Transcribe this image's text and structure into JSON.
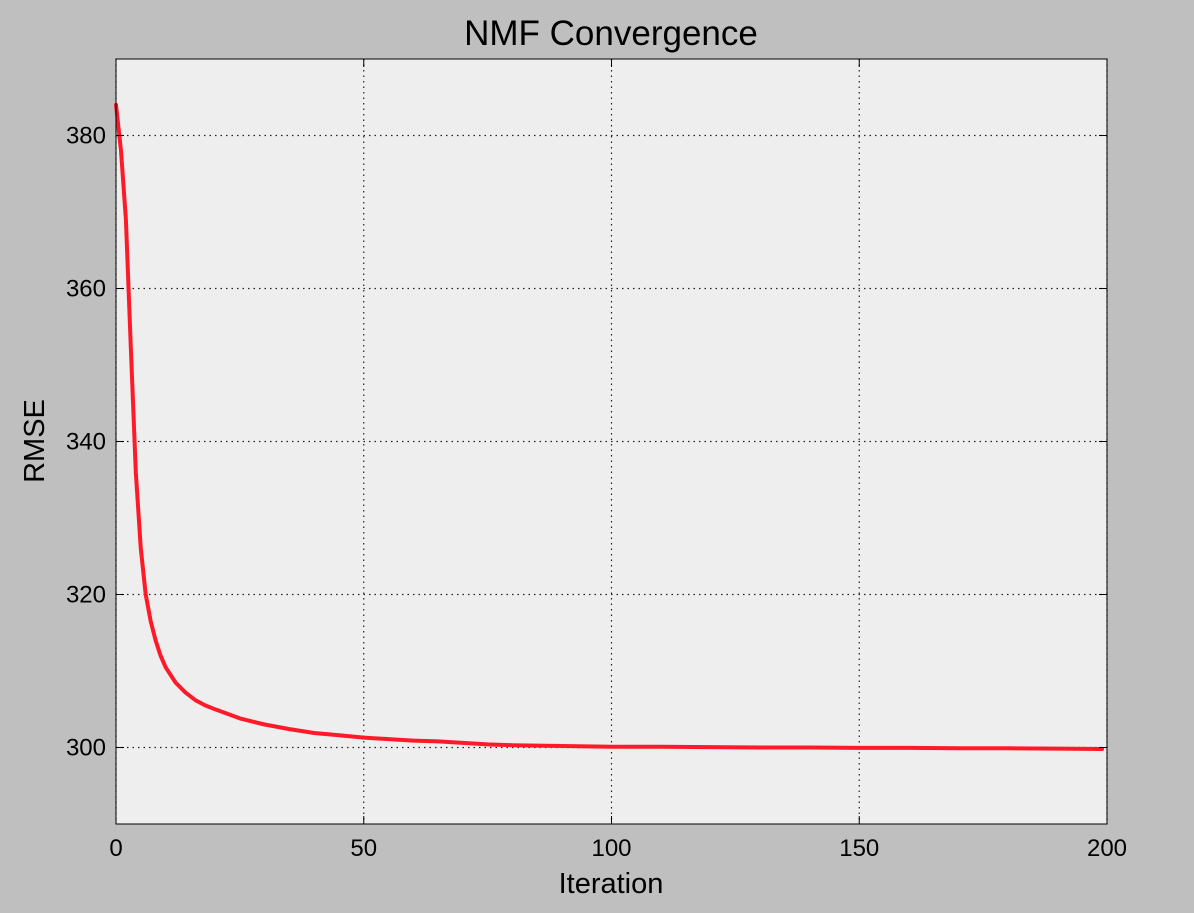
{
  "chart_data": {
    "type": "line",
    "title": "NMF Convergence",
    "xlabel": "Iteration",
    "ylabel": "RMSE",
    "xlim": [
      0,
      200
    ],
    "ylim": [
      290,
      390
    ],
    "xticks": [
      0,
      50,
      100,
      150,
      200
    ],
    "xtick_labels": [
      "0",
      "50",
      "100",
      "150",
      "200"
    ],
    "yticks": [
      300,
      320,
      340,
      360,
      380
    ],
    "ytick_labels": [
      "300",
      "320",
      "340",
      "360",
      "380"
    ],
    "grid": true,
    "colors": {
      "figure_background": "#bfbfbf",
      "plot_background": "#eeeeee",
      "line": "#ff1a2a",
      "grid": "#222222"
    },
    "series": [
      {
        "x": [
          0,
          1,
          2,
          3,
          4,
          5,
          6,
          7,
          8,
          9,
          10,
          12,
          14,
          16,
          18,
          20,
          25,
          30,
          35,
          40,
          45,
          50,
          55,
          60,
          65,
          70,
          75,
          80,
          90,
          100,
          110,
          120,
          130,
          140,
          150,
          160,
          170,
          180,
          190,
          199
        ],
        "values": [
          384,
          378,
          369,
          352,
          336,
          326,
          320,
          316.5,
          314,
          312,
          310.5,
          308.5,
          307.2,
          306.2,
          305.5,
          305,
          303.8,
          303,
          302.4,
          301.9,
          301.6,
          301.3,
          301.1,
          300.9,
          300.8,
          300.6,
          300.4,
          300.3,
          300.2,
          300.1,
          300.1,
          300.05,
          300.0,
          300.0,
          299.95,
          299.95,
          299.9,
          299.9,
          299.85,
          299.8
        ]
      }
    ]
  }
}
